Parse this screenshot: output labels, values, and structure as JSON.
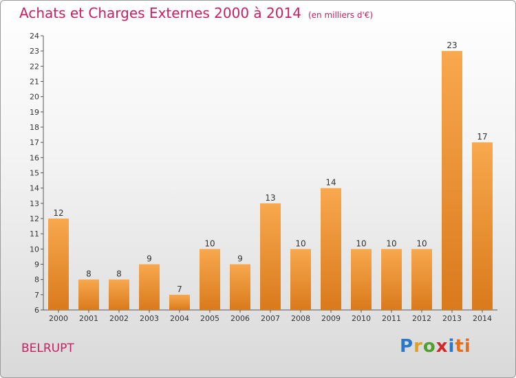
{
  "title": "Achats et Charges Externes 2000 à 2014",
  "unit": "(en milliers d'€)",
  "place": "BELRUPT",
  "logo": {
    "letters": [
      "P",
      "r",
      "o",
      "x",
      "i",
      "ti"
    ]
  },
  "colors": {
    "bar_top": "#f8a84e",
    "bar_bottom": "#d97a1c",
    "title": "#c81e62"
  },
  "chart_data": {
    "type": "bar",
    "title": "Achats et Charges Externes 2000 à 2014",
    "xlabel": "",
    "ylabel": "",
    "categories": [
      "2000",
      "2001",
      "2002",
      "2003",
      "2004",
      "2005",
      "2006",
      "2007",
      "2008",
      "2009",
      "2010",
      "2011",
      "2012",
      "2013",
      "2014"
    ],
    "values": [
      12,
      8,
      8,
      9,
      7,
      10,
      9,
      13,
      10,
      14,
      10,
      10,
      10,
      23,
      17
    ],
    "ylim": [
      6,
      24
    ],
    "yticks": [
      "6",
      "7",
      "8",
      "9",
      "10",
      "11",
      "12",
      "13",
      "14",
      "15",
      "16",
      "17",
      "18",
      "19",
      "20",
      "21",
      "22",
      "23",
      "24"
    ],
    "grid": false,
    "legend": "none"
  }
}
